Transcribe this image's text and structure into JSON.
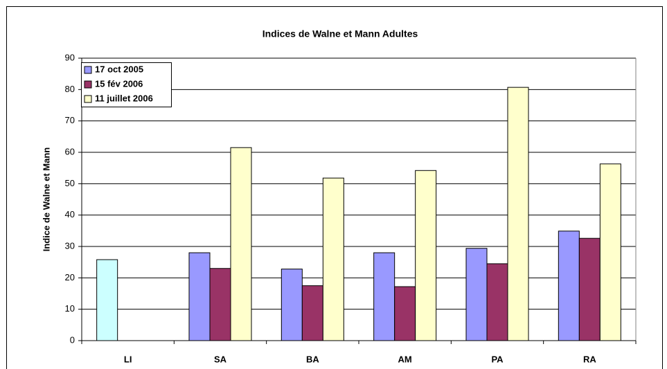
{
  "chart_data": {
    "type": "bar",
    "title": "Indices de Walne et Mann Adultes",
    "y_label": "Indice de Walne et Mann",
    "categories": [
      "LI",
      "SA",
      "BA",
      "AM",
      "PA",
      "RA"
    ],
    "series": [
      {
        "name": "17 oct 2005",
        "color": "#9999ff",
        "point_colors": [
          "#ccffff",
          "#9999ff",
          "#9999ff",
          "#9999ff",
          "#9999ff",
          "#9999ff"
        ],
        "values": [
          25.8,
          28,
          22.8,
          28,
          29.4,
          34.9
        ]
      },
      {
        "name": "15 fév 2006",
        "color": "#993366",
        "values": [
          null,
          23,
          17.5,
          17.2,
          24.5,
          32.6
        ]
      },
      {
        "name": "11 juillet 2006",
        "color": "#ffffcc",
        "values": [
          null,
          61.5,
          51.8,
          54.2,
          80.7,
          56.3
        ]
      }
    ],
    "ylim": [
      0,
      90
    ],
    "yticks": [
      0,
      10,
      20,
      30,
      40,
      50,
      60,
      70,
      80,
      90
    ],
    "grid": true,
    "legend": "top-left"
  }
}
